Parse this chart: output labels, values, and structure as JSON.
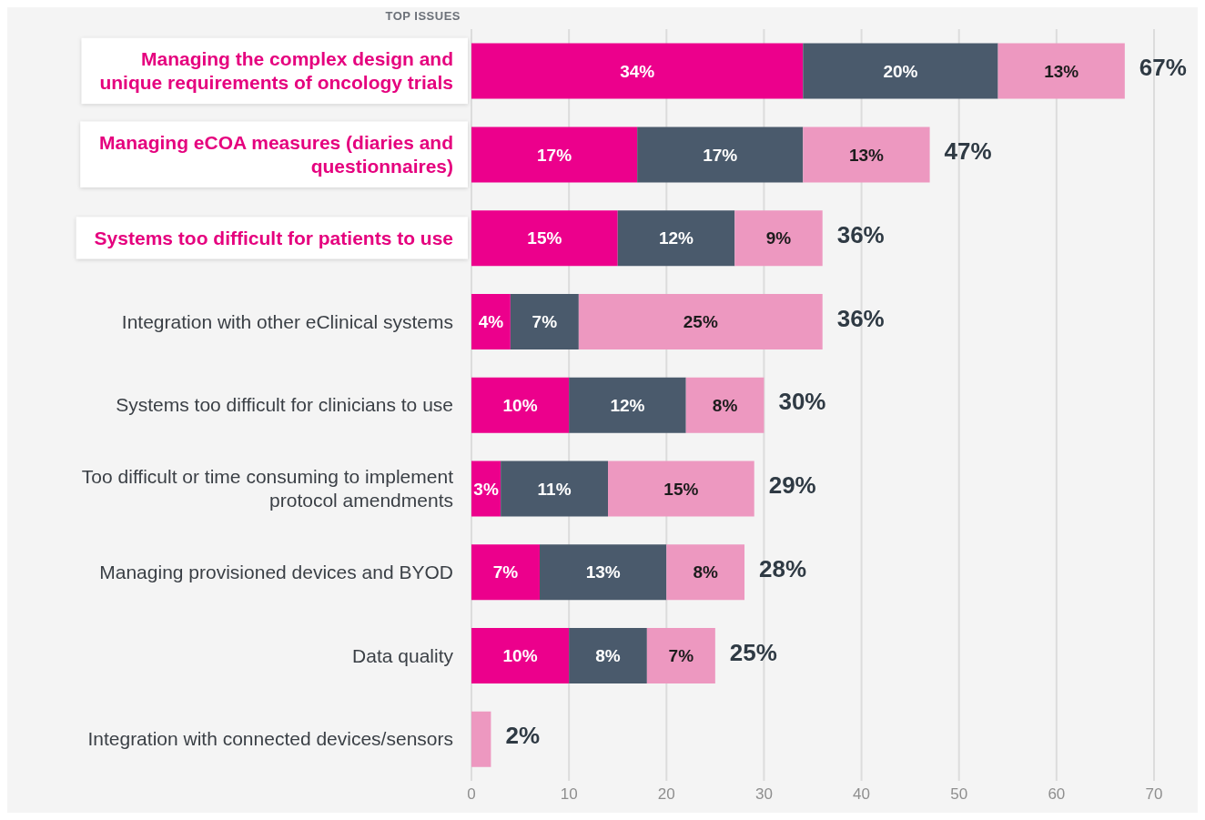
{
  "chart_data": {
    "type": "bar",
    "orientation": "horizontal",
    "stacked": true,
    "annotations": [
      "TOP ISSUES"
    ],
    "categories": [
      "Managing the complex design and unique requirements of oncology trials",
      "Managing eCOA measures (diaries and questionnaires)",
      "Systems too difficult for patients to use",
      "Integration with other eClinical systems",
      "Systems too difficult for clinicians to use",
      "Too difficult or time consuming to implement protocol amendments",
      "Managing provisioned devices and BYOD",
      "Data quality",
      "Integration with connected devices/sensors"
    ],
    "series": [
      {
        "color": "#ec008c",
        "values": [
          34,
          17,
          15,
          4,
          10,
          3,
          7,
          10,
          null
        ],
        "value_labels": [
          "34%",
          "17%",
          "15%",
          "4%",
          "10%",
          "3%",
          "7%",
          "10%",
          null
        ]
      },
      {
        "color": "#4a5a6c",
        "values": [
          20,
          17,
          12,
          7,
          12,
          11,
          13,
          8,
          null
        ],
        "value_labels": [
          "20%",
          "17%",
          "12%",
          "7%",
          "12%",
          "11%",
          "13%",
          "8%",
          null
        ]
      },
      {
        "color": "#ed98c0",
        "values": [
          13,
          13,
          9,
          25,
          8,
          15,
          8,
          7,
          2
        ],
        "value_labels": [
          "13%",
          "13%",
          "9%",
          "25%",
          "8%",
          "15%",
          "8%",
          "7%",
          null
        ]
      }
    ],
    "totals": [
      "67%",
      "47%",
      "36%",
      "36%",
      "30%",
      "29%",
      "28%",
      "25%",
      "2%"
    ],
    "xlim": [
      0,
      70
    ],
    "xticks": [
      0,
      10,
      20,
      30,
      40,
      50,
      60,
      70
    ],
    "grid": "x"
  }
}
